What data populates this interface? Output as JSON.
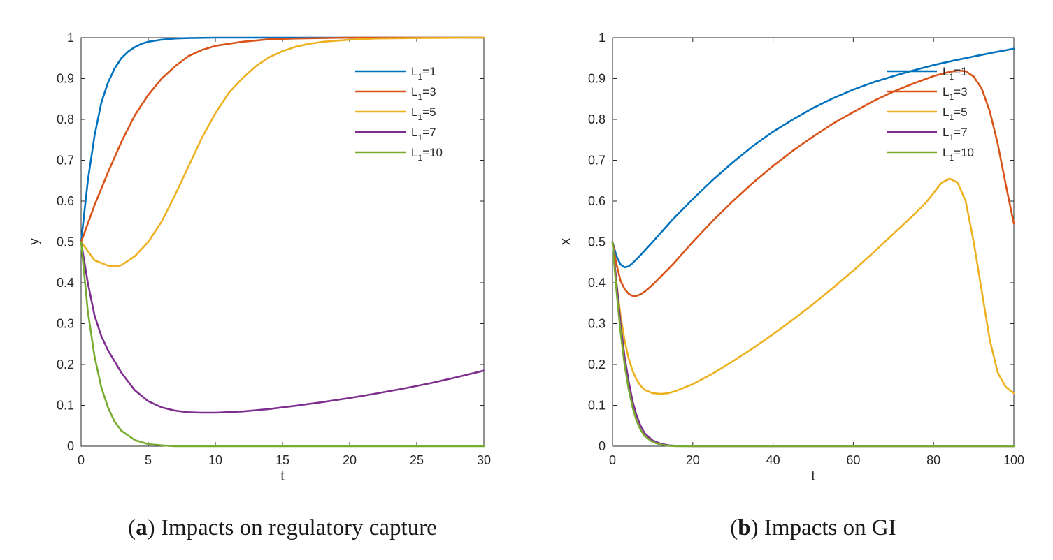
{
  "chart_data": [
    {
      "type": "line",
      "panel_letter": "a",
      "caption": "Impacts on regulatory capture",
      "xlabel": "t",
      "ylabel": "y",
      "xlim": [
        0,
        30
      ],
      "ylim": [
        0,
        1
      ],
      "xticks": [
        0,
        5,
        10,
        15,
        20,
        25,
        30
      ],
      "xtick_labels": [
        "0",
        "5",
        "10",
        "15",
        "20",
        "25",
        "30"
      ],
      "yticks": [
        0,
        0.1,
        0.2,
        0.3,
        0.4,
        0.5,
        0.6,
        0.7,
        0.8,
        0.9,
        1
      ],
      "ytick_labels": [
        "0",
        "0.1",
        "0.2",
        "0.3",
        "0.4",
        "0.5",
        "0.6",
        "0.7",
        "0.8",
        "0.9",
        "1"
      ],
      "legend_position": "top-right",
      "series": [
        {
          "name": "L1=1",
          "label_base": "L",
          "label_sub": "1",
          "label_rest": "=1",
          "color": "#0072BD",
          "x": [
            0,
            0.5,
            1,
            1.5,
            2,
            2.5,
            3,
            3.5,
            4,
            4.5,
            5,
            6,
            7,
            8,
            10,
            12,
            15,
            20,
            25,
            30
          ],
          "y": [
            0.5,
            0.65,
            0.76,
            0.84,
            0.89,
            0.925,
            0.95,
            0.966,
            0.977,
            0.985,
            0.99,
            0.995,
            0.998,
            0.999,
            1.0,
            1.0,
            1.0,
            1.0,
            1.0,
            1.0
          ]
        },
        {
          "name": "L1=3",
          "label_base": "L",
          "label_sub": "1",
          "label_rest": "=3",
          "color": "#D95319",
          "x": [
            0,
            1,
            2,
            3,
            4,
            5,
            6,
            7,
            8,
            9,
            10,
            12,
            14,
            16,
            20,
            25,
            30
          ],
          "y": [
            0.5,
            0.59,
            0.67,
            0.745,
            0.81,
            0.86,
            0.9,
            0.93,
            0.955,
            0.97,
            0.98,
            0.99,
            0.996,
            0.998,
            1.0,
            1.0,
            1.0
          ]
        },
        {
          "name": "L1=5",
          "label_base": "L",
          "label_sub": "1",
          "label_rest": "=5",
          "color": "#EDB120",
          "x": [
            0,
            1,
            2,
            2.5,
            3,
            4,
            5,
            6,
            7,
            8,
            9,
            10,
            11,
            12,
            13,
            14,
            15,
            16,
            17,
            18,
            20,
            22,
            25,
            30
          ],
          "y": [
            0.5,
            0.455,
            0.442,
            0.44,
            0.443,
            0.465,
            0.5,
            0.55,
            0.615,
            0.685,
            0.755,
            0.815,
            0.865,
            0.9,
            0.93,
            0.952,
            0.967,
            0.978,
            0.985,
            0.99,
            0.995,
            0.998,
            0.999,
            1.0
          ]
        },
        {
          "name": "L1=7",
          "label_base": "L",
          "label_sub": "1",
          "label_rest": "=7",
          "color": "#7E2F8E",
          "x": [
            0,
            0.5,
            1,
            1.5,
            2,
            3,
            4,
            5,
            6,
            7,
            8,
            9,
            10,
            12,
            14,
            16,
            18,
            20,
            22,
            24,
            26,
            28,
            30
          ],
          "y": [
            0.5,
            0.4,
            0.32,
            0.27,
            0.235,
            0.18,
            0.137,
            0.11,
            0.095,
            0.087,
            0.083,
            0.082,
            0.082,
            0.085,
            0.091,
            0.099,
            0.108,
            0.118,
            0.129,
            0.141,
            0.154,
            0.169,
            0.185
          ]
        },
        {
          "name": "L1=10",
          "label_base": "L",
          "label_sub": "1",
          "label_rest": "=10",
          "color": "#77AC30",
          "x": [
            0,
            0.5,
            1,
            1.5,
            2,
            2.5,
            3,
            4,
            5,
            6,
            7,
            8,
            10,
            15,
            20,
            25,
            30
          ],
          "y": [
            0.5,
            0.33,
            0.22,
            0.145,
            0.095,
            0.06,
            0.038,
            0.015,
            0.005,
            0.002,
            0.0,
            0.0,
            0.0,
            0.0,
            0.0,
            0.0,
            0.0
          ]
        }
      ]
    },
    {
      "type": "line",
      "panel_letter": "b",
      "caption": "Impacts on GI",
      "xlabel": "t",
      "ylabel": "x",
      "xlim": [
        0,
        100
      ],
      "ylim": [
        0,
        1
      ],
      "xticks": [
        0,
        20,
        40,
        60,
        80,
        100
      ],
      "xtick_labels": [
        "0",
        "20",
        "40",
        "60",
        "80",
        "100"
      ],
      "yticks": [
        0,
        0.1,
        0.2,
        0.3,
        0.4,
        0.5,
        0.6,
        0.7,
        0.8,
        0.9,
        1
      ],
      "ytick_labels": [
        "0",
        "0.1",
        "0.2",
        "0.3",
        "0.4",
        "0.5",
        "0.6",
        "0.7",
        "0.8",
        "0.9",
        "1"
      ],
      "legend_position": "top-right",
      "series": [
        {
          "name": "L1=1",
          "label_base": "L",
          "label_sub": "1",
          "label_rest": "=1",
          "color": "#0072BD",
          "x": [
            0,
            1,
            2,
            3,
            4,
            5,
            7,
            10,
            15,
            20,
            25,
            30,
            35,
            40,
            45,
            50,
            55,
            60,
            65,
            70,
            75,
            80,
            85,
            90,
            95,
            100
          ],
          "y": [
            0.5,
            0.465,
            0.445,
            0.438,
            0.44,
            0.448,
            0.468,
            0.5,
            0.555,
            0.605,
            0.652,
            0.695,
            0.735,
            0.77,
            0.8,
            0.828,
            0.852,
            0.873,
            0.891,
            0.906,
            0.92,
            0.933,
            0.944,
            0.954,
            0.964,
            0.973
          ]
        },
        {
          "name": "L1=3",
          "label_base": "L",
          "label_sub": "1",
          "label_rest": "=3",
          "color": "#D95319",
          "x": [
            0,
            1,
            2,
            3,
            4,
            5,
            6,
            7,
            8,
            10,
            15,
            20,
            25,
            30,
            35,
            40,
            45,
            50,
            55,
            60,
            65,
            70,
            75,
            80,
            83,
            86,
            88,
            90,
            92,
            94,
            96,
            98,
            100
          ],
          "y": [
            0.5,
            0.445,
            0.405,
            0.385,
            0.373,
            0.368,
            0.368,
            0.372,
            0.378,
            0.395,
            0.445,
            0.5,
            0.552,
            0.6,
            0.645,
            0.686,
            0.724,
            0.758,
            0.79,
            0.818,
            0.845,
            0.868,
            0.888,
            0.906,
            0.914,
            0.92,
            0.918,
            0.905,
            0.875,
            0.82,
            0.74,
            0.64,
            0.545
          ]
        },
        {
          "name": "L1=5",
          "label_base": "L",
          "label_sub": "1",
          "label_rest": "=5",
          "color": "#EDB120",
          "x": [
            0,
            1,
            2,
            3,
            4,
            5,
            6,
            7,
            8,
            10,
            12,
            14,
            16,
            20,
            25,
            30,
            35,
            40,
            45,
            50,
            55,
            60,
            65,
            70,
            75,
            78,
            80,
            82,
            84,
            86,
            88,
            90,
            92,
            94,
            96,
            98,
            100
          ],
          "y": [
            0.5,
            0.4,
            0.32,
            0.26,
            0.215,
            0.185,
            0.163,
            0.148,
            0.138,
            0.13,
            0.128,
            0.13,
            0.136,
            0.152,
            0.178,
            0.208,
            0.24,
            0.274,
            0.31,
            0.348,
            0.388,
            0.43,
            0.474,
            0.52,
            0.566,
            0.595,
            0.62,
            0.645,
            0.655,
            0.645,
            0.6,
            0.5,
            0.38,
            0.26,
            0.18,
            0.145,
            0.13
          ]
        },
        {
          "name": "L1=7",
          "label_base": "L",
          "label_sub": "1",
          "label_rest": "=7",
          "color": "#7E2F8E",
          "x": [
            0,
            1,
            2,
            3,
            4,
            5,
            6,
            7,
            8,
            10,
            12,
            14,
            16,
            20,
            30,
            50,
            70,
            100
          ],
          "y": [
            0.5,
            0.4,
            0.3,
            0.22,
            0.16,
            0.11,
            0.075,
            0.05,
            0.032,
            0.014,
            0.006,
            0.002,
            0.001,
            0.0,
            0.0,
            0.0,
            0.0,
            0.0
          ]
        },
        {
          "name": "L1=10",
          "label_base": "L",
          "label_sub": "1",
          "label_rest": "=10",
          "color": "#77AC30",
          "x": [
            0,
            1,
            2,
            3,
            4,
            5,
            6,
            7,
            8,
            10,
            12,
            14,
            16,
            20,
            30,
            50,
            70,
            100
          ],
          "y": [
            0.5,
            0.38,
            0.28,
            0.2,
            0.14,
            0.095,
            0.062,
            0.04,
            0.025,
            0.01,
            0.004,
            0.001,
            0.0,
            0.0,
            0.0,
            0.0,
            0.0,
            0.0
          ]
        }
      ]
    }
  ]
}
